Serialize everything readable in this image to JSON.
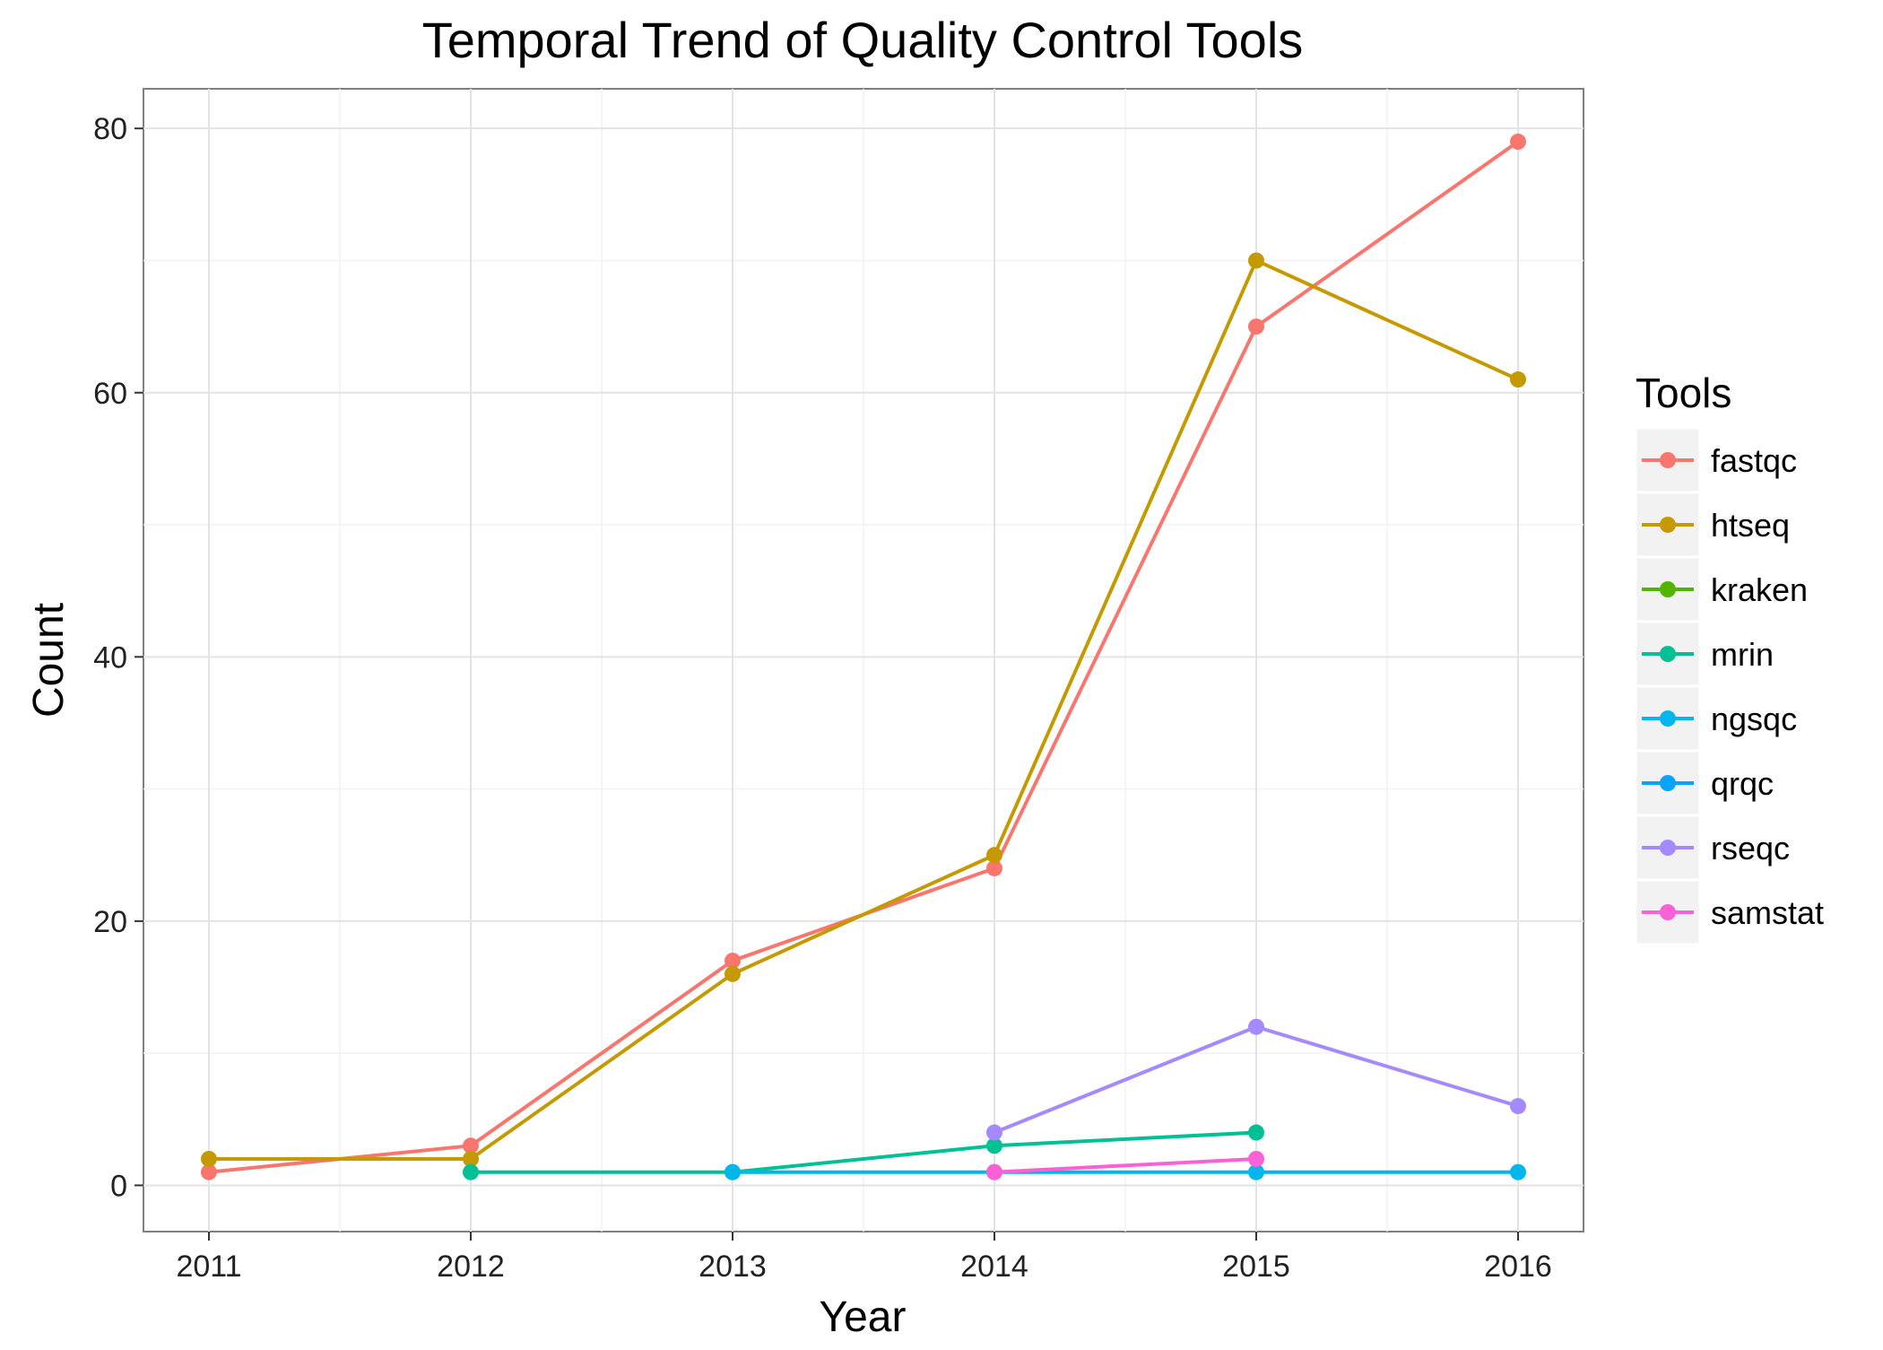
{
  "chart_data": {
    "type": "line",
    "title": "Temporal Trend of Quality Control Tools",
    "xlabel": "Year",
    "ylabel": "Count",
    "xlim": [
      2010.75,
      2016.25
    ],
    "ylim": [
      -3.5,
      83
    ],
    "x_ticks": [
      2011,
      2012,
      2013,
      2014,
      2015,
      2016
    ],
    "y_ticks": [
      0,
      20,
      40,
      60,
      80
    ],
    "grid": true,
    "legend": {
      "title": "Tools",
      "position": "right"
    },
    "series": [
      {
        "name": "fastqc",
        "color": "#F8766D",
        "points": [
          {
            "x": 2011,
            "y": 1
          },
          {
            "x": 2012,
            "y": 3
          },
          {
            "x": 2013,
            "y": 17
          },
          {
            "x": 2014,
            "y": 24
          },
          {
            "x": 2015,
            "y": 65
          },
          {
            "x": 2016,
            "y": 79
          }
        ]
      },
      {
        "name": "htseq",
        "color": "#C49A00",
        "points": [
          {
            "x": 2011,
            "y": 2
          },
          {
            "x": 2012,
            "y": 2
          },
          {
            "x": 2013,
            "y": 16
          },
          {
            "x": 2014,
            "y": 25
          },
          {
            "x": 2015,
            "y": 70
          },
          {
            "x": 2016,
            "y": 61
          }
        ]
      },
      {
        "name": "kraken",
        "color": "#53B400",
        "points": []
      },
      {
        "name": "mrin",
        "color": "#00C094",
        "points": [
          {
            "x": 2012,
            "y": 1
          },
          {
            "x": 2013,
            "y": 1
          },
          {
            "x": 2014,
            "y": 3
          },
          {
            "x": 2015,
            "y": 4
          }
        ]
      },
      {
        "name": "ngsqc",
        "color": "#00B6EB",
        "points": [
          {
            "x": 2013,
            "y": 1
          },
          {
            "x": 2014,
            "y": 1
          },
          {
            "x": 2015,
            "y": 1
          },
          {
            "x": 2016,
            "y": 1
          }
        ]
      },
      {
        "name": "qrqc",
        "color": "#06A4FF",
        "points": []
      },
      {
        "name": "rseqc",
        "color": "#A58AFF",
        "points": [
          {
            "x": 2014,
            "y": 4
          },
          {
            "x": 2015,
            "y": 12
          },
          {
            "x": 2016,
            "y": 6
          }
        ]
      },
      {
        "name": "samstat",
        "color": "#FB61D7",
        "points": [
          {
            "x": 2014,
            "y": 1
          },
          {
            "x": 2015,
            "y": 2
          }
        ]
      }
    ]
  }
}
